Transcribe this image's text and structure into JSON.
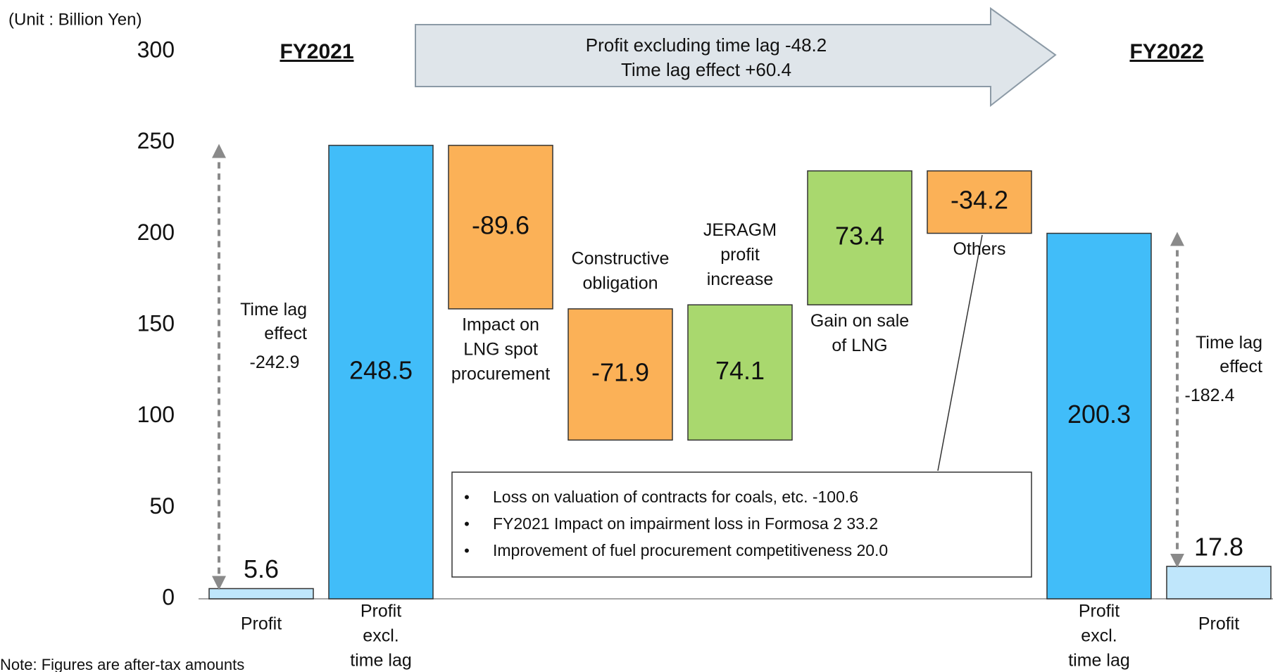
{
  "unit_label": "(Unit : Billion Yen)",
  "note": "Note: Figures are after-tax amounts",
  "chart_data": {
    "type": "waterfall",
    "categories": [
      [
        "Profit"
      ],
      [
        "Profit",
        "excl.",
        "time lag"
      ],
      [
        "Impact on",
        "LNG spot",
        "procurement"
      ],
      [
        "Constructive",
        "obligation"
      ],
      [
        "JERAGM",
        "profit",
        "increase"
      ],
      [
        "Gain on sale",
        "of LNG"
      ],
      [
        "Others"
      ],
      [
        "Profit",
        "excl.",
        "time lag"
      ],
      [
        "Profit"
      ]
    ],
    "kinds": [
      "total",
      "total",
      "delta",
      "delta",
      "delta",
      "delta",
      "delta",
      "total",
      "total"
    ],
    "values": [
      5.6,
      248.5,
      -89.6,
      -71.9,
      74.1,
      73.4,
      -34.2,
      200.3,
      17.8
    ],
    "colors": [
      "#bfe6fb",
      "#41bdf9",
      "#fbb157",
      "#fbb157",
      "#a9d86e",
      "#a9d86e",
      "#fbb157",
      "#41bdf9",
      "#bfe6fb"
    ],
    "ylim": [
      0,
      300
    ],
    "yticks": [
      0,
      50,
      100,
      150,
      200,
      250,
      300
    ],
    "grid": false,
    "period_labels": [
      "FY2021",
      "FY2022"
    ],
    "summary": [
      "Profit excluding time lag -48.2",
      "Time lag effect +60.4"
    ],
    "time_lag": [
      {
        "label": [
          "Time lag",
          "effect"
        ],
        "value": -242.9
      },
      {
        "label": [
          "Time lag",
          "effect"
        ],
        "value": -182.4
      }
    ],
    "others_breakdown": [
      "Loss on valuation of contracts for coals, etc.  -100.6",
      "FY2021 Impact on impairment loss in Formosa 2  33.2",
      "Improvement of fuel procurement competitiveness  20.0"
    ]
  }
}
